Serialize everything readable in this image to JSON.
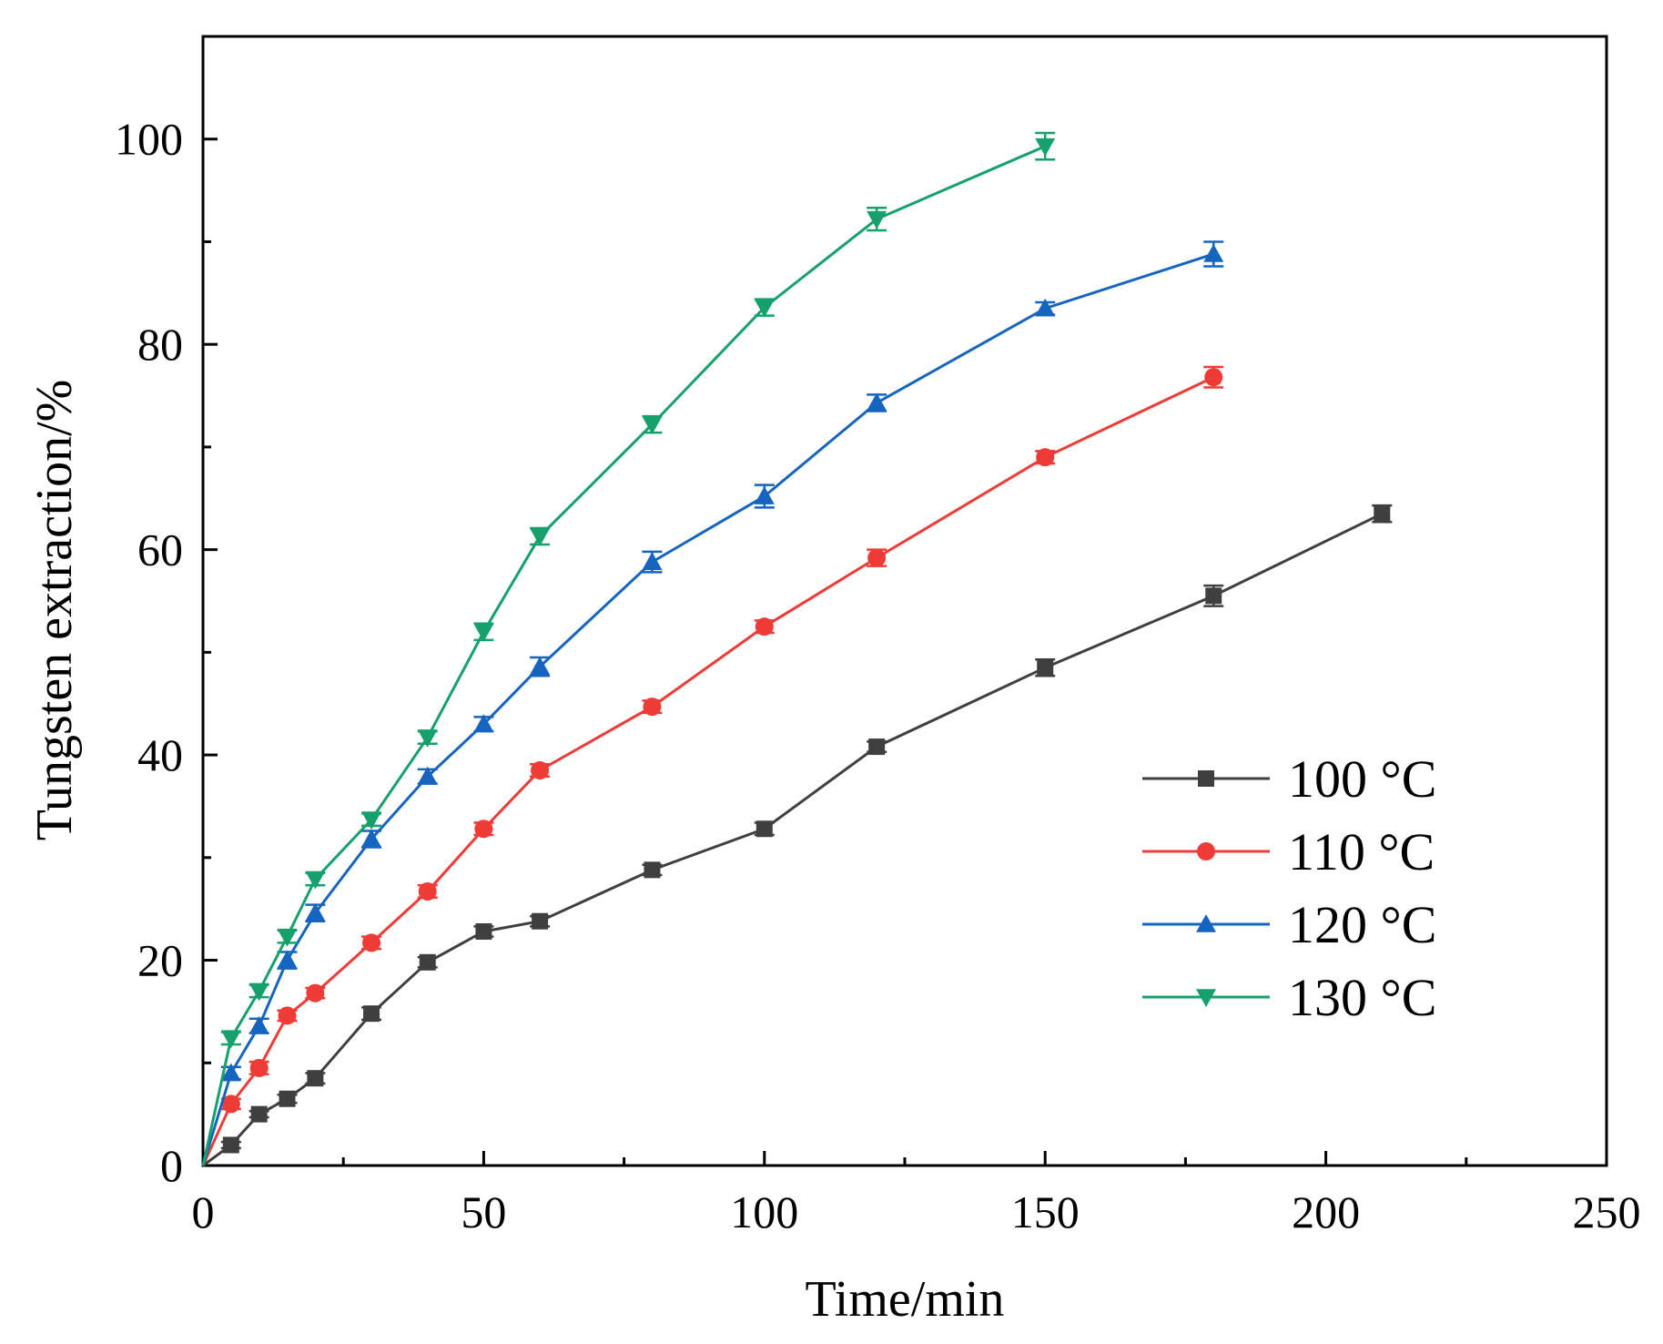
{
  "chart_data": {
    "type": "line",
    "title": "",
    "xlabel": "Time/min",
    "ylabel": "Tungsten extraction/%",
    "xlim": [
      0,
      250
    ],
    "ylim": [
      0,
      110
    ],
    "xticks": [
      0,
      50,
      100,
      150,
      200,
      250
    ],
    "yticks": [
      0,
      20,
      40,
      60,
      80,
      100
    ],
    "grid": false,
    "legend_position": "right-middle",
    "series": [
      {
        "name": "100 °C",
        "color": "#3f3f3f",
        "marker": "square",
        "x": [
          0,
          5,
          10,
          15,
          20,
          30,
          40,
          50,
          60,
          80,
          100,
          120,
          150,
          180,
          210
        ],
        "y": [
          0,
          2,
          5,
          6.5,
          8.5,
          14.8,
          19.8,
          22.8,
          23.8,
          28.8,
          32.8,
          40.8,
          48.5,
          55.5,
          63.5
        ],
        "err": [
          0,
          0.3,
          0.3,
          0.4,
          0.5,
          0.6,
          0.5,
          0.5,
          0.5,
          0.5,
          0.6,
          0.5,
          0.8,
          1.0,
          0.8
        ]
      },
      {
        "name": "110 °C",
        "color": "#ef3b36",
        "marker": "circle",
        "x": [
          0,
          5,
          10,
          15,
          20,
          30,
          40,
          50,
          60,
          80,
          100,
          120,
          150,
          180
        ],
        "y": [
          0,
          6,
          9.5,
          14.6,
          16.8,
          21.7,
          26.7,
          32.8,
          38.5,
          44.7,
          52.5,
          59.2,
          69,
          76.8
        ],
        "err": [
          0,
          0.5,
          0.6,
          0.5,
          0.5,
          0.6,
          0.6,
          0.6,
          0.6,
          0.6,
          0.6,
          0.8,
          0.6,
          1.0
        ]
      },
      {
        "name": "120 °C",
        "color": "#1565c0",
        "marker": "triangle-up",
        "x": [
          0,
          5,
          10,
          15,
          20,
          30,
          40,
          50,
          60,
          80,
          100,
          120,
          150,
          180
        ],
        "y": [
          0,
          9,
          13.6,
          20,
          24.6,
          31.8,
          37.9,
          43,
          48.6,
          58.8,
          65.2,
          74.3,
          83.5,
          88.8
        ],
        "err": [
          0,
          0.6,
          0.7,
          0.8,
          0.8,
          0.8,
          0.7,
          0.7,
          0.9,
          1.0,
          1.1,
          0.8,
          0.6,
          1.2
        ]
      },
      {
        "name": "130 °C",
        "color": "#16a06b",
        "marker": "triangle-down",
        "x": [
          0,
          5,
          10,
          15,
          20,
          30,
          40,
          50,
          60,
          80,
          100,
          120,
          150
        ],
        "y": [
          0,
          12.4,
          17,
          22.3,
          27.9,
          33.7,
          41.7,
          52,
          61.3,
          72.2,
          83.6,
          92.2,
          99.3
        ],
        "err": [
          0,
          0.6,
          0.6,
          0.6,
          0.6,
          0.6,
          0.6,
          0.8,
          0.8,
          0.8,
          0.8,
          1.1,
          1.3
        ]
      }
    ]
  }
}
